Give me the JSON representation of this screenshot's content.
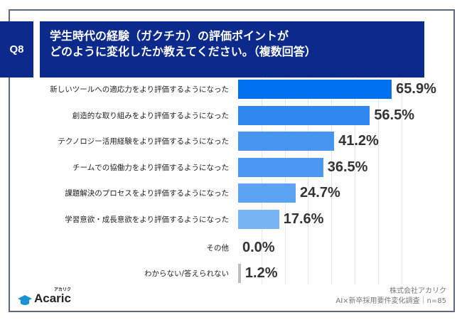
{
  "question": {
    "badge": "Q8",
    "title_line1": "学生時代の経験（ガクチカ）の評価ポイントが",
    "title_line2": "どのように変化したか教えてください。（複数回答）"
  },
  "footer": {
    "company": "株式会社アカリク",
    "survey": "AI×新卒採用要件変化調査｜n=85",
    "logo_text": "Acaric",
    "logo_kana": "アカリク"
  },
  "chart_data": {
    "type": "bar",
    "orientation": "horizontal",
    "categories": [
      "新しいツールへの適応力をより評価するようになった",
      "創造的な取り組みをより評価するようになった",
      "テクノロジー活用経験をより評価するようになった",
      "チームでの協働力をより評価するようになった",
      "課題解決のプロセスをより評価するようになった",
      "学習意欲・成長意欲をより評価するようになった",
      "その他",
      "わからない/答えられない"
    ],
    "values": [
      65.9,
      56.5,
      41.2,
      36.5,
      24.7,
      17.6,
      0.0,
      1.2
    ],
    "labels": [
      "65.9%",
      "56.5%",
      "41.2%",
      "36.5%",
      "24.7%",
      "17.6%",
      "0.0%",
      "1.2%"
    ],
    "colors": [
      "#0070f0",
      "#2f86ee",
      "#4696f0",
      "#4a98f2",
      "#5ba3f3",
      "#78b4f5",
      "#bdbdbd",
      "#bdbdbd"
    ],
    "xlim": [
      0,
      70
    ],
    "grid": true
  }
}
